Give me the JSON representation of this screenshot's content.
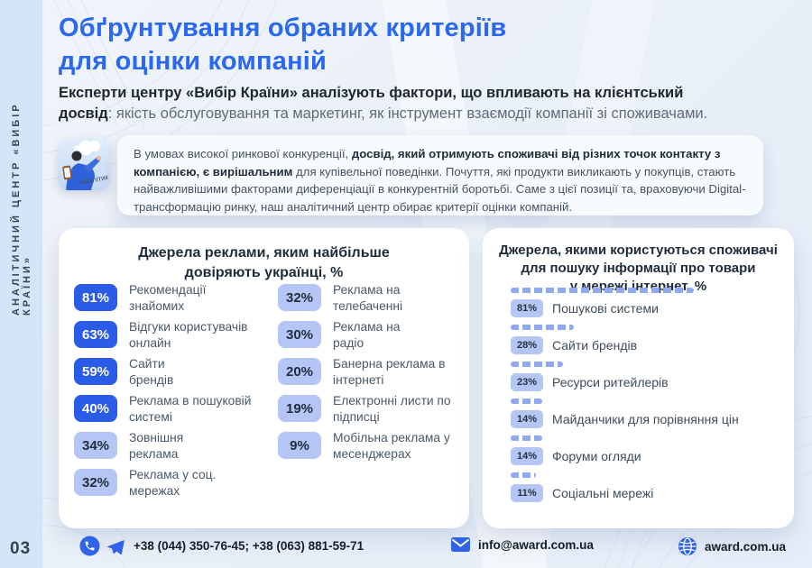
{
  "sidebar": {
    "label": "АНАЛІТИЧНИЙ ЦЕНТР «ВИБІР КРАЇНИ»",
    "page_number": "03"
  },
  "header": {
    "title_line1": "Обґрунтування обраних критеріїв",
    "title_line2": "для оцінки компаній",
    "subtitle_line1_bold": "Експерти центру «Вибір Країни» аналізують фактори, що впливають на клієнтський",
    "subtitle_line2_bold": "досвід",
    "subtitle_line2_rest": ": якість обслуговування та маркетинг, як інструмент взаємодії компанії зі споживачами."
  },
  "analyst_note": {
    "icon_label": "Аналітик",
    "text_pre": "В умовах високої ринкової конкуренції, ",
    "text_bold": "досвід, який отримують споживачі від різних точок контакту з компанією, є вирішальним",
    "text_post": " для купівельної поведінки. Почуття, які продукти викликають у покупців, стають найважливішими факторами диференціації в конкурентній боротьбі. Саме з цієї позиції та, враховуючи Digital-трансформацію ринку, наш аналітичний центр обирає критерії оцінки компаній."
  },
  "trust_card": {
    "title_line1": "Джерела реклами, яким найбільше",
    "title_line2": "довіряють українці, %",
    "col1": [
      {
        "value": "81%",
        "label": "Рекомендації\nзнайомих"
      },
      {
        "value": "63%",
        "label": "Відгуки користувачів\nонлайн"
      },
      {
        "value": "59%",
        "label": "Сайти\nбрендів"
      },
      {
        "value": "40%",
        "label": "Реклама в пошуковій\nсистемі"
      },
      {
        "value": "34%",
        "label": "Зовнішня\nреклама"
      },
      {
        "value": "32%",
        "label": "Реклама у соц.\nмережах"
      }
    ],
    "col2": [
      {
        "value": "32%",
        "label": "Реклама на\nтелебаченні"
      },
      {
        "value": "30%",
        "label": "Реклама на\nрадіо"
      },
      {
        "value": "20%",
        "label": "Банерна реклама в\nінтернеті"
      },
      {
        "value": "19%",
        "label": "Електронні листи по\nпідписці"
      },
      {
        "value": "9%",
        "label": "Мобільна реклама у\nмесенджерах"
      }
    ]
  },
  "search_card": {
    "title_line1": "Джерела, якими користуються споживачі",
    "title_line2": "для пошуку інформації про товари",
    "title_line3": "у мережі інтернет, %",
    "items": [
      {
        "value": "81%",
        "pct": 81,
        "label": "Пошукові системи"
      },
      {
        "value": "28%",
        "pct": 28,
        "label": "Сайти брендів"
      },
      {
        "value": "23%",
        "pct": 23,
        "label": "Ресурси ритейлерів"
      },
      {
        "value": "14%",
        "pct": 14,
        "label": "Майданчики для порівняння цін"
      },
      {
        "value": "14%",
        "pct": 14,
        "label": "Форуми огляди"
      },
      {
        "value": "11%",
        "pct": 11,
        "label": "Соціальні мережі"
      }
    ]
  },
  "footer": {
    "phones": "+38 (044) 350-76-45; +38 (063) 881-59-71",
    "email": "info@award.com.ua",
    "website": "award.com.ua"
  },
  "colors": {
    "accent_blue": "#2968ef",
    "badge_dark": "#2a5ce8",
    "badge_light": "#b5c6f6",
    "dash_blue": "#8fa9f2",
    "sidebar_bg": "#d6e4f8"
  },
  "chart_data": [
    {
      "type": "bar",
      "title": "Джерела реклами, яким найбільше довіряють українці, %",
      "categories": [
        "Рекомендації знайомих",
        "Відгуки користувачів онлайн",
        "Сайти брендів",
        "Реклама в пошуковій системі",
        "Зовнішня реклама",
        "Реклама у соц. мережах",
        "Реклама на телебаченні",
        "Реклама на радіо",
        "Банерна реклама в інтернеті",
        "Електронні листи по підписці",
        "Мобільна реклама у месенджерах"
      ],
      "values": [
        81,
        63,
        59,
        40,
        34,
        32,
        32,
        30,
        20,
        19,
        9
      ],
      "unit": "%",
      "legend_position": "none",
      "grid": false
    },
    {
      "type": "bar",
      "title": "Джерела, якими користуються споживачі для пошуку інформації про товари у мережі інтернет, %",
      "categories": [
        "Пошукові системи",
        "Сайти брендів",
        "Ресурси ритейлерів",
        "Майданчики для порівняння цін",
        "Форуми огляди",
        "Соціальні мережі"
      ],
      "values": [
        81,
        28,
        23,
        14,
        14,
        11
      ],
      "unit": "%",
      "legend_position": "none",
      "grid": false
    }
  ]
}
